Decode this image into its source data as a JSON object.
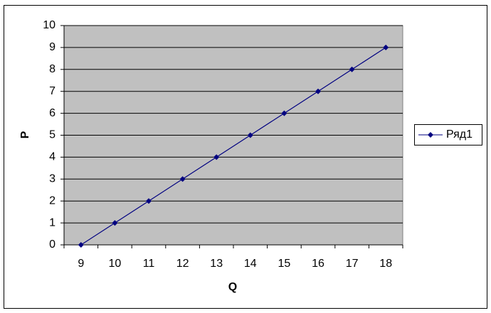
{
  "chart_data": {
    "type": "line",
    "x_label": "Q",
    "y_label": "P",
    "categories": [
      "9",
      "10",
      "11",
      "12",
      "13",
      "14",
      "15",
      "16",
      "17",
      "18"
    ],
    "series": [
      {
        "name": "Ряд1",
        "color": "#000080",
        "values": [
          0,
          1,
          2,
          3,
          4,
          5,
          6,
          7,
          8,
          9
        ]
      }
    ],
    "ylim": [
      0,
      10
    ],
    "yticks": [
      0,
      1,
      2,
      3,
      4,
      5,
      6,
      7,
      8,
      9,
      10
    ],
    "grid": true,
    "plot_background": "#c0c0c0",
    "legend": "right"
  }
}
